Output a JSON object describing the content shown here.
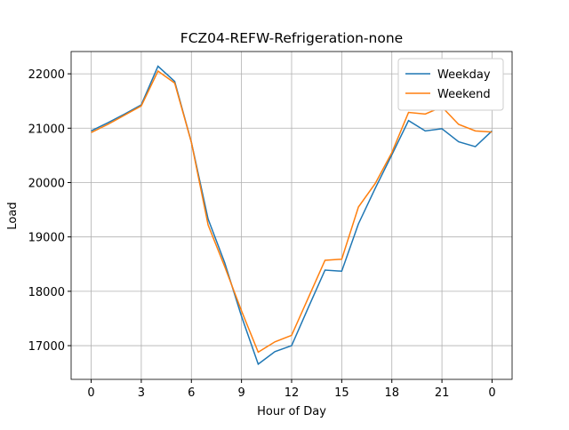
{
  "chart_data": {
    "type": "line",
    "title": "FCZ04-REFW-Refrigeration-none",
    "x_label": "Hour of Day",
    "y_label": "Load",
    "x": [
      0,
      1,
      2,
      3,
      4,
      5,
      6,
      7,
      8,
      9,
      10,
      11,
      12,
      13,
      14,
      15,
      16,
      17,
      18,
      19,
      20,
      21,
      22,
      23,
      24
    ],
    "series": [
      {
        "name": "Weekday",
        "color": "#1f77b4",
        "values": [
          20950,
          21100,
          21260,
          21430,
          22140,
          21860,
          20740,
          19330,
          18520,
          17540,
          16660,
          16890,
          17000,
          17700,
          18390,
          18370,
          19240,
          19890,
          20510,
          21140,
          20950,
          20990,
          20750,
          20660,
          20950
        ]
      },
      {
        "name": "Weekend",
        "color": "#ff7f0e",
        "values": [
          20920,
          21070,
          21240,
          21410,
          22050,
          21830,
          20740,
          19220,
          18450,
          17640,
          16880,
          17070,
          17190,
          17880,
          18570,
          18590,
          19550,
          19980,
          20550,
          21290,
          21260,
          21390,
          21070,
          20950,
          20930
        ]
      }
    ],
    "xlim": [
      -1.2,
      25.2
    ],
    "ylim": [
      16380,
      22410
    ],
    "xticks": [
      0,
      3,
      6,
      9,
      12,
      15,
      18,
      21,
      {
        "value": 24,
        "label": "0"
      }
    ],
    "yticks": [
      17000,
      18000,
      19000,
      20000,
      21000,
      22000
    ],
    "grid": true,
    "legend": "upper-right"
  }
}
